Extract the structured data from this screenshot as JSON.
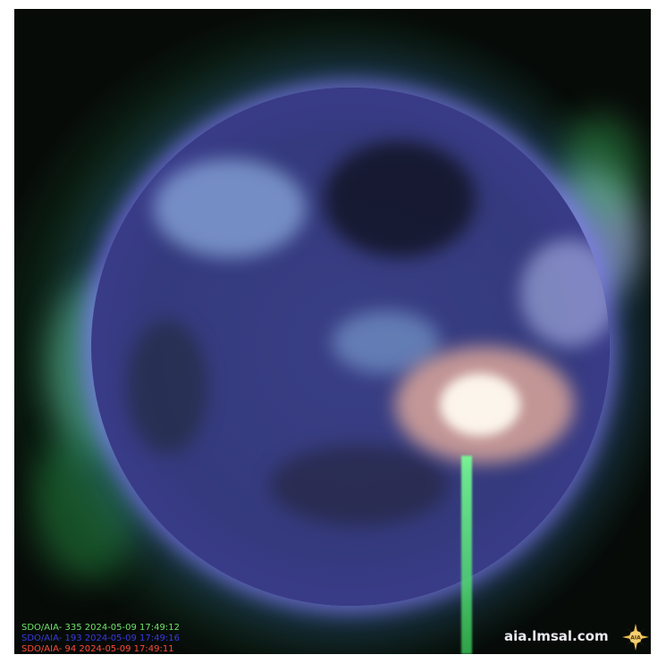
{
  "captions": {
    "line1": "SDO/AIA- 335 2024-05-09 17:49:12",
    "line2": "SDO/AIA- 193 2024-05-09 17:49:16",
    "line3": "SDO/AIA- 94 2024-05-09 17:49:11"
  },
  "watermark": {
    "site": "aia.lmsal.com",
    "logo_text": "AIA"
  },
  "colors": {
    "caption_335": "#6fe36a",
    "caption_193": "#3a3ae0",
    "caption_94": "#ff4a3a",
    "disk_blue": "#343a7d",
    "limb": "#e8e2ff",
    "flare": "#fff3e6"
  }
}
